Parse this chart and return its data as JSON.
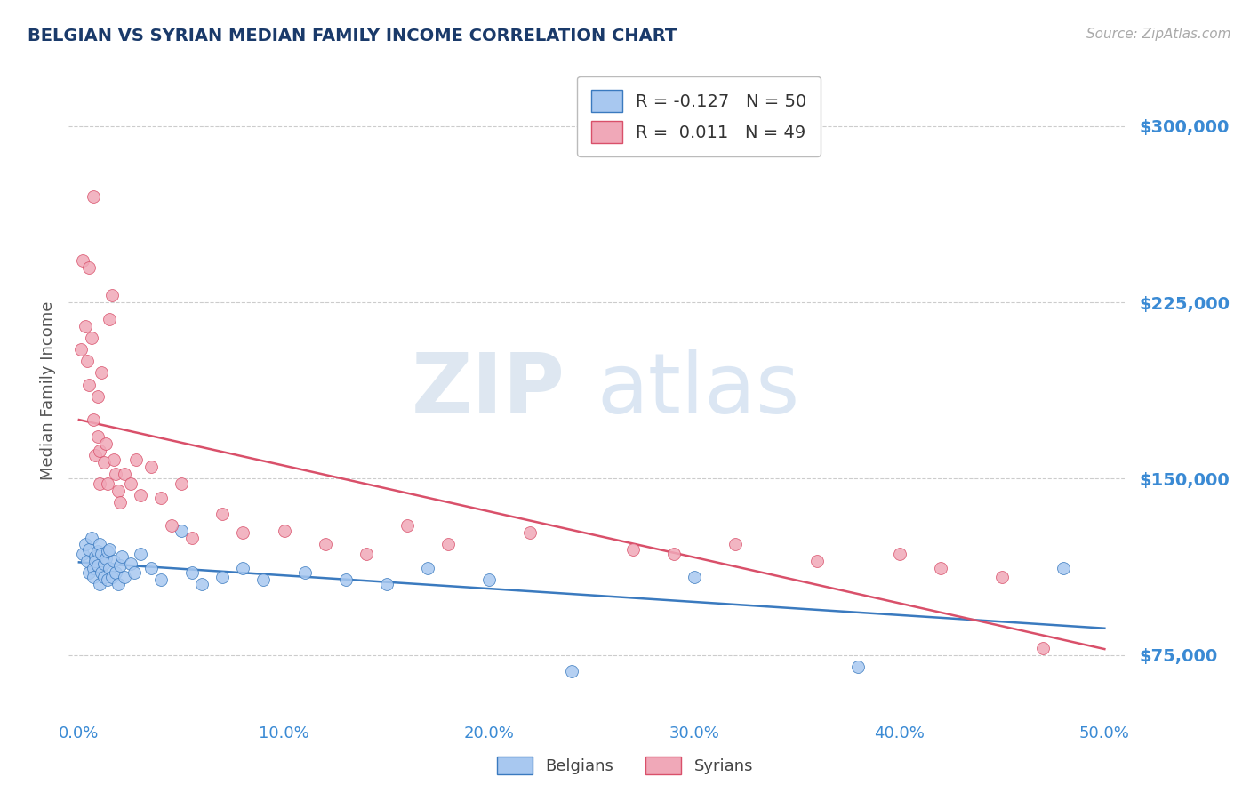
{
  "title": "BELGIAN VS SYRIAN MEDIAN FAMILY INCOME CORRELATION CHART",
  "source": "Source: ZipAtlas.com",
  "ylabel": "Median Family Income",
  "xlim": [
    -0.5,
    51.0
  ],
  "ylim": [
    50000,
    325000
  ],
  "yticks": [
    75000,
    150000,
    225000,
    300000
  ],
  "ytick_labels": [
    "$75,000",
    "$150,000",
    "$225,000",
    "$300,000"
  ],
  "xticks": [
    0.0,
    10.0,
    20.0,
    30.0,
    40.0,
    50.0
  ],
  "xtick_labels": [
    "0.0%",
    "10.0%",
    "20.0%",
    "30.0%",
    "40.0%",
    "50.0%"
  ],
  "belgian_color": "#a8c8f0",
  "syrian_color": "#f0a8b8",
  "trend_blue": "#3a7abf",
  "trend_pink": "#d9506a",
  "legend_R1": "-0.127",
  "legend_N1": "50",
  "legend_R2": "0.011",
  "legend_N2": "49",
  "watermark_zip": "ZIP",
  "watermark_atlas": "atlas",
  "background_color": "#ffffff",
  "grid_color": "#cccccc",
  "title_color": "#1a3a6a",
  "axis_color": "#3a8ad4",
  "belgian_x": [
    0.2,
    0.3,
    0.4,
    0.5,
    0.5,
    0.6,
    0.7,
    0.7,
    0.8,
    0.8,
    0.9,
    0.9,
    1.0,
    1.0,
    1.1,
    1.1,
    1.2,
    1.2,
    1.3,
    1.4,
    1.4,
    1.5,
    1.5,
    1.6,
    1.7,
    1.8,
    1.9,
    2.0,
    2.1,
    2.2,
    2.5,
    2.7,
    3.0,
    3.5,
    4.0,
    5.0,
    5.5,
    6.0,
    7.0,
    8.0,
    9.0,
    11.0,
    13.0,
    15.0,
    17.0,
    20.0,
    24.0,
    30.0,
    38.0,
    48.0
  ],
  "belgian_y": [
    118000,
    122000,
    115000,
    110000,
    120000,
    125000,
    112000,
    108000,
    117000,
    115000,
    113000,
    119000,
    105000,
    122000,
    110000,
    118000,
    108000,
    114000,
    116000,
    107000,
    119000,
    112000,
    120000,
    108000,
    115000,
    110000,
    105000,
    113000,
    117000,
    108000,
    114000,
    110000,
    118000,
    112000,
    107000,
    128000,
    110000,
    105000,
    108000,
    112000,
    107000,
    110000,
    107000,
    105000,
    112000,
    107000,
    68000,
    108000,
    70000,
    112000
  ],
  "syrian_x": [
    0.1,
    0.2,
    0.3,
    0.4,
    0.5,
    0.5,
    0.6,
    0.7,
    0.7,
    0.8,
    0.9,
    0.9,
    1.0,
    1.0,
    1.1,
    1.2,
    1.3,
    1.4,
    1.5,
    1.6,
    1.7,
    1.8,
    1.9,
    2.0,
    2.2,
    2.5,
    2.8,
    3.0,
    3.5,
    4.0,
    4.5,
    5.0,
    5.5,
    7.0,
    8.0,
    10.0,
    12.0,
    14.0,
    16.0,
    18.0,
    22.0,
    27.0,
    29.0,
    32.0,
    36.0,
    40.0,
    42.0,
    45.0,
    47.0
  ],
  "syrian_y": [
    205000,
    243000,
    215000,
    200000,
    240000,
    190000,
    210000,
    175000,
    270000,
    160000,
    185000,
    168000,
    162000,
    148000,
    195000,
    157000,
    165000,
    148000,
    218000,
    228000,
    158000,
    152000,
    145000,
    140000,
    152000,
    148000,
    158000,
    143000,
    155000,
    142000,
    130000,
    148000,
    125000,
    135000,
    127000,
    128000,
    122000,
    118000,
    130000,
    122000,
    127000,
    120000,
    118000,
    122000,
    115000,
    118000,
    112000,
    108000,
    78000
  ]
}
